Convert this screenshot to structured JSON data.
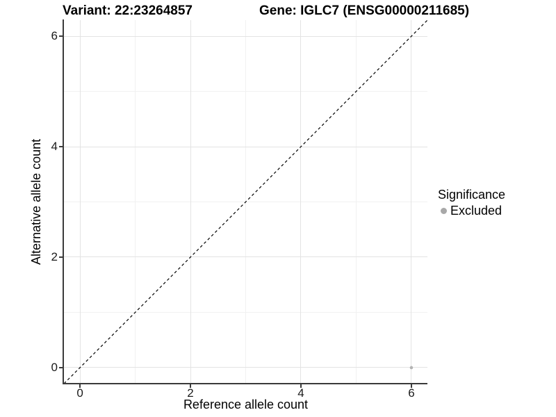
{
  "header": {
    "variant_title": "Variant: 22:23264857",
    "gene_title": "Gene: IGLC7 (ENSG00000211685)"
  },
  "chart_data": {
    "type": "scatter",
    "title_left": "Variant: 22:23264857",
    "title_right": "Gene: IGLC7 (ENSG00000211685)",
    "xlabel": "Reference allele count",
    "ylabel": "Alternative allele count",
    "xlim": [
      -0.29,
      6.29
    ],
    "ylim": [
      -0.29,
      6.29
    ],
    "x_major_ticks": [
      0,
      2,
      4,
      6
    ],
    "x_tick_labels": [
      "0",
      "2",
      "4",
      "6"
    ],
    "y_major_ticks": [
      0,
      2,
      4,
      6
    ],
    "y_tick_labels": [
      "0",
      "2",
      "4",
      "6"
    ],
    "x_minor_ticks": [
      1,
      3,
      5
    ],
    "y_minor_ticks": [
      1,
      3,
      5
    ],
    "grid": "major-and-minor",
    "identity_line": {
      "style": "dashed",
      "color": "#000000",
      "from": "bottom-left",
      "to": "top-right"
    },
    "series": [
      {
        "name": "Excluded",
        "color": "#b3b3b3",
        "points": [
          {
            "x": 6,
            "y": 0
          }
        ]
      }
    ],
    "legend": {
      "position": "right",
      "title": "Significance",
      "items": [
        {
          "label": "Excluded",
          "color": "#a8a8a8"
        }
      ]
    },
    "colors": {
      "axis_line": "#3a3a3a",
      "grid_major": "#e3e3e3",
      "grid_minor": "#f1f1f1",
      "background": "#ffffff"
    }
  }
}
